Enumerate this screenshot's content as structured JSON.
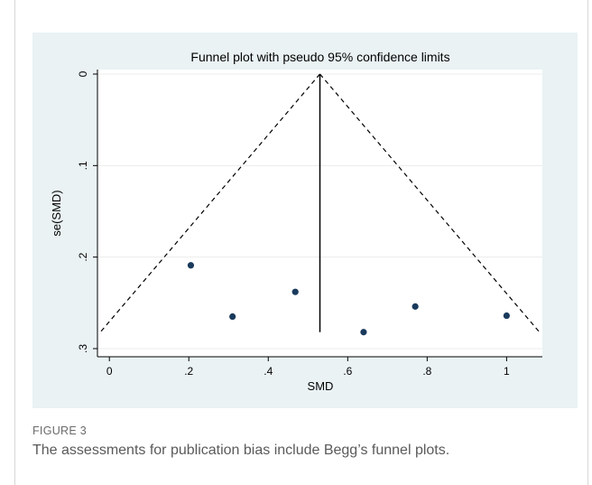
{
  "chart_data": {
    "type": "scatter",
    "title": "Funnel plot with pseudo 95% confidence limits",
    "xlabel": "SMD",
    "ylabel": "se(SMD)",
    "xlim": [
      -0.03,
      1.09
    ],
    "ylim": [
      0,
      0.31
    ],
    "y_reversed": true,
    "grid": "horizontal",
    "x_ticks": [
      {
        "value": 0,
        "label": "0"
      },
      {
        "value": 0.2,
        "label": ".2"
      },
      {
        "value": 0.4,
        "label": ".4"
      },
      {
        "value": 0.6,
        "label": ".6"
      },
      {
        "value": 0.8,
        "label": ".8"
      },
      {
        "value": 1,
        "label": "1"
      }
    ],
    "y_ticks": [
      {
        "value": 0,
        "label": "0"
      },
      {
        "value": 0.1,
        "label": ".1"
      },
      {
        "value": 0.2,
        "label": ".2"
      },
      {
        "value": 0.3,
        "label": ".3"
      }
    ],
    "points": [
      {
        "x": 0.205,
        "y": 0.209
      },
      {
        "x": 0.31,
        "y": 0.265
      },
      {
        "x": 0.468,
        "y": 0.238
      },
      {
        "x": 0.64,
        "y": 0.282
      },
      {
        "x": 0.77,
        "y": 0.254
      },
      {
        "x": 1.0,
        "y": 0.264
      }
    ],
    "pooled_estimate": 0.53,
    "max_se": 0.282,
    "funnel_multiplier": 1.96,
    "colors": {
      "point": "#1a3a5c",
      "line": "#000000",
      "grid": "#ececec",
      "plot_bg": "#ffffff",
      "outer_bg": "#eaf2f3"
    }
  },
  "caption": {
    "label": "FIGURE 3",
    "text": "The assessments for publication bias include Begg’s funnel plots."
  }
}
